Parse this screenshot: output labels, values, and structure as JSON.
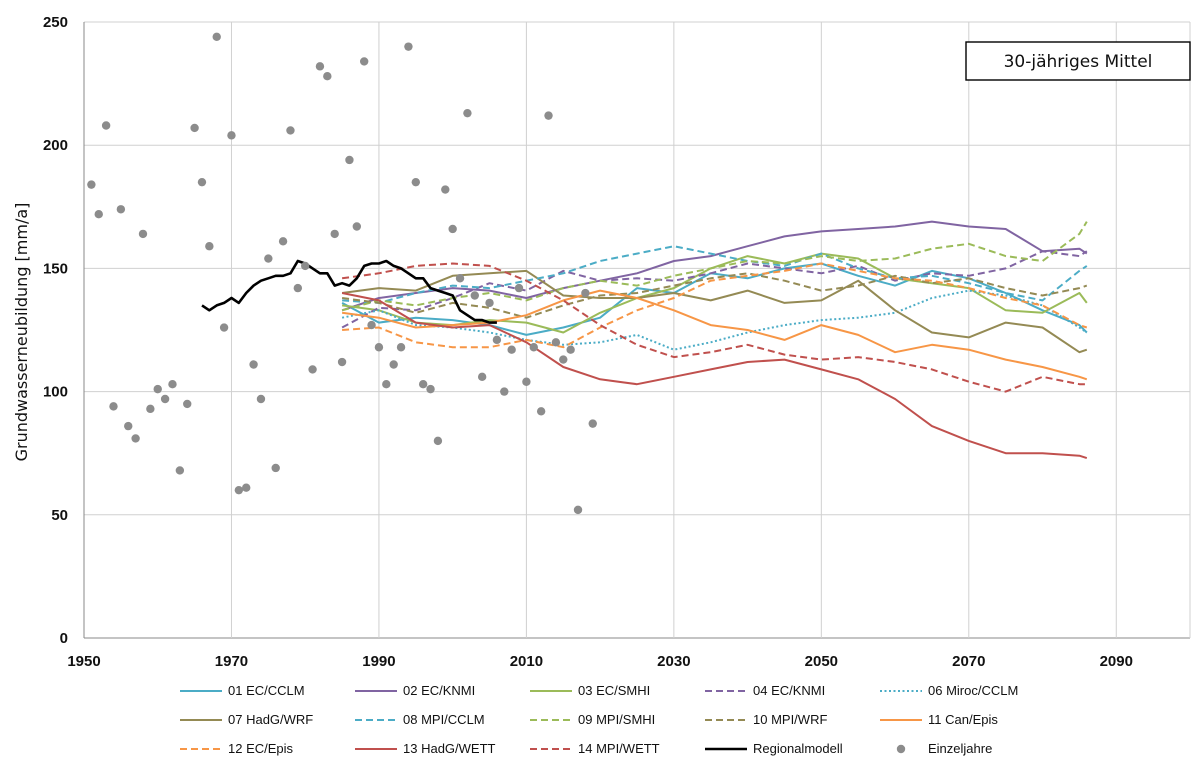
{
  "chart_data": {
    "type": "line",
    "title": "",
    "xlabel": "",
    "ylabel": "Grundwasserneubildung [mm/a]",
    "xlim": [
      1950,
      2100
    ],
    "ylim": [
      0,
      250
    ],
    "x_ticks": [
      1950,
      1970,
      1990,
      2010,
      2030,
      2050,
      2070,
      2090
    ],
    "y_ticks": [
      0,
      50,
      100,
      150,
      200,
      250
    ],
    "grid": true,
    "legend_position": "bottom",
    "annotation": "30-jähriges Mittel",
    "series": [
      {
        "name": "01 EC/CCLM",
        "color": "#4bacc6",
        "dash": "solid",
        "x": [
          1985,
          1990,
          1995,
          2000,
          2005,
          2010,
          2015,
          2020,
          2025,
          2030,
          2035,
          2040,
          2045,
          2050,
          2055,
          2060,
          2065,
          2070,
          2075,
          2080,
          2085,
          2086
        ],
        "y": [
          136,
          128,
          130,
          129,
          127,
          123,
          126,
          130,
          142,
          140,
          148,
          146,
          150,
          152,
          147,
          143,
          149,
          146,
          140,
          133,
          127,
          124
        ]
      },
      {
        "name": "02 EC/KNMI",
        "color": "#8064a2",
        "dash": "solid",
        "x": [
          1985,
          1990,
          1995,
          2000,
          2005,
          2010,
          2015,
          2020,
          2025,
          2030,
          2035,
          2040,
          2045,
          2050,
          2055,
          2060,
          2065,
          2070,
          2075,
          2080,
          2085,
          2086
        ],
        "y": [
          133,
          138,
          140,
          142,
          141,
          138,
          142,
          145,
          148,
          153,
          155,
          159,
          163,
          165,
          166,
          167,
          169,
          167,
          166,
          157,
          158,
          156
        ]
      },
      {
        "name": "03 EC/SMHI",
        "color": "#9bbb59",
        "dash": "solid",
        "x": [
          1985,
          1990,
          1995,
          2000,
          2005,
          2010,
          2015,
          2020,
          2025,
          2030,
          2035,
          2040,
          2045,
          2050,
          2055,
          2060,
          2065,
          2070,
          2075,
          2080,
          2085,
          2086
        ],
        "y": [
          135,
          133,
          128,
          127,
          129,
          128,
          124,
          132,
          138,
          142,
          150,
          155,
          152,
          156,
          154,
          146,
          144,
          142,
          133,
          132,
          140,
          136
        ]
      },
      {
        "name": "04 EC/KNMI",
        "color": "#8064a2",
        "dash": "dashed",
        "x": [
          1985,
          1990,
          1995,
          2000,
          2005,
          2010,
          2015,
          2020,
          2025,
          2030,
          2035,
          2040,
          2045,
          2050,
          2055,
          2060,
          2065,
          2070,
          2075,
          2080,
          2085,
          2086
        ],
        "y": [
          126,
          134,
          133,
          138,
          144,
          141,
          149,
          145,
          146,
          145,
          148,
          152,
          150,
          148,
          151,
          145,
          148,
          147,
          150,
          157,
          155,
          157
        ]
      },
      {
        "name": "06 Miroc/CCLM",
        "color": "#4bacc6",
        "dash": "dotted",
        "x": [
          1985,
          1990,
          1995,
          2000,
          2005,
          2010,
          2015,
          2020,
          2025,
          2030,
          2035,
          2040,
          2045,
          2050,
          2055,
          2060,
          2065,
          2070,
          2075,
          2080,
          2085,
          2086
        ],
        "y": [
          130,
          133,
          127,
          126,
          124,
          121,
          119,
          120,
          123,
          117,
          120,
          124,
          127,
          129,
          130,
          132,
          138,
          141,
          139,
          135,
          126,
          124
        ]
      },
      {
        "name": "07 HadG/WRF",
        "color": "#948a54",
        "dash": "solid",
        "x": [
          1985,
          1990,
          1995,
          2000,
          2005,
          2010,
          2015,
          2020,
          2025,
          2030,
          2035,
          2040,
          2045,
          2050,
          2055,
          2060,
          2065,
          2070,
          2075,
          2080,
          2085,
          2086
        ],
        "y": [
          140,
          142,
          141,
          147,
          148,
          149,
          139,
          138,
          138,
          140,
          137,
          141,
          136,
          137,
          145,
          133,
          124,
          122,
          128,
          126,
          116,
          117
        ]
      },
      {
        "name": "08 MPI/CCLM",
        "color": "#4bacc6",
        "dash": "dashed",
        "x": [
          1985,
          1990,
          1995,
          2000,
          2005,
          2010,
          2015,
          2020,
          2025,
          2030,
          2035,
          2040,
          2045,
          2050,
          2055,
          2060,
          2065,
          2070,
          2075,
          2080,
          2085,
          2086
        ],
        "y": [
          137,
          136,
          140,
          143,
          142,
          145,
          148,
          153,
          156,
          159,
          156,
          153,
          151,
          156,
          150,
          146,
          147,
          144,
          140,
          137,
          149,
          151
        ]
      },
      {
        "name": "09 MPI/SMHI",
        "color": "#9bbb59",
        "dash": "dashed",
        "x": [
          1985,
          1990,
          1995,
          2000,
          2005,
          2010,
          2015,
          2020,
          2025,
          2030,
          2035,
          2040,
          2045,
          2050,
          2055,
          2060,
          2065,
          2070,
          2075,
          2080,
          2085,
          2086
        ],
        "y": [
          133,
          137,
          135,
          138,
          140,
          137,
          142,
          145,
          143,
          147,
          150,
          153,
          152,
          155,
          153,
          154,
          158,
          160,
          155,
          153,
          164,
          169
        ]
      },
      {
        "name": "10 MPI/WRF",
        "color": "#948a54",
        "dash": "dashed",
        "x": [
          1985,
          1990,
          1995,
          2000,
          2005,
          2010,
          2015,
          2020,
          2025,
          2030,
          2035,
          2040,
          2045,
          2050,
          2055,
          2060,
          2065,
          2070,
          2075,
          2080,
          2085,
          2086
        ],
        "y": [
          138,
          136,
          132,
          136,
          134,
          130,
          135,
          139,
          140,
          143,
          146,
          148,
          145,
          141,
          143,
          147,
          144,
          146,
          142,
          139,
          142,
          143
        ]
      },
      {
        "name": "11 Can/Epis",
        "color": "#f79646",
        "dash": "solid",
        "x": [
          1985,
          1990,
          1995,
          2000,
          2005,
          2010,
          2015,
          2020,
          2025,
          2030,
          2035,
          2040,
          2045,
          2050,
          2055,
          2060,
          2065,
          2070,
          2075,
          2080,
          2085,
          2086
        ],
        "y": [
          132,
          130,
          126,
          127,
          128,
          131,
          137,
          141,
          138,
          133,
          127,
          125,
          121,
          127,
          123,
          116,
          119,
          117,
          113,
          110,
          106,
          105
        ]
      },
      {
        "name": "12 EC/Epis",
        "color": "#f79646",
        "dash": "dashed",
        "x": [
          1985,
          1990,
          1995,
          2000,
          2005,
          2010,
          2015,
          2020,
          2025,
          2030,
          2035,
          2040,
          2045,
          2050,
          2055,
          2060,
          2065,
          2070,
          2075,
          2080,
          2085,
          2086
        ],
        "y": [
          125,
          126,
          120,
          118,
          118,
          121,
          118,
          126,
          133,
          138,
          145,
          147,
          149,
          152,
          149,
          146,
          145,
          142,
          138,
          135,
          127,
          126
        ]
      },
      {
        "name": "13 HadG/WETT",
        "color": "#c0504d",
        "dash": "solid",
        "x": [
          1985,
          1990,
          1995,
          2000,
          2005,
          2010,
          2015,
          2020,
          2025,
          2030,
          2035,
          2040,
          2045,
          2050,
          2055,
          2060,
          2065,
          2070,
          2075,
          2080,
          2085,
          2086
        ],
        "y": [
          140,
          137,
          128,
          126,
          127,
          120,
          110,
          105,
          103,
          106,
          109,
          112,
          113,
          109,
          105,
          97,
          86,
          80,
          75,
          75,
          74,
          73
        ]
      },
      {
        "name": "14 MPI/WETT",
        "color": "#c0504d",
        "dash": "dashed",
        "x": [
          1985,
          1990,
          1995,
          2000,
          2005,
          2010,
          2015,
          2020,
          2025,
          2030,
          2035,
          2040,
          2045,
          2050,
          2055,
          2060,
          2065,
          2070,
          2075,
          2080,
          2085,
          2086
        ],
        "y": [
          146,
          148,
          151,
          152,
          151,
          145,
          137,
          127,
          119,
          114,
          116,
          119,
          115,
          113,
          114,
          112,
          109,
          104,
          100,
          106,
          103,
          103
        ]
      },
      {
        "name": "Regionalmodell",
        "color": "#000000",
        "dash": "solid",
        "width": 2.6,
        "x": [
          1966,
          1967,
          1968,
          1969,
          1970,
          1971,
          1972,
          1973,
          1974,
          1975,
          1976,
          1977,
          1978,
          1979,
          1980,
          1981,
          1982,
          1983,
          1984,
          1985,
          1986,
          1987,
          1988,
          1989,
          1990,
          1991,
          1992,
          1993,
          1994,
          1995,
          1996,
          1997,
          1998,
          1999,
          2000,
          2001,
          2002,
          2003,
          2004,
          2005,
          2006
        ],
        "y": [
          135,
          133,
          135,
          136,
          138,
          136,
          140,
          143,
          145,
          146,
          147,
          147,
          148,
          153,
          152,
          150,
          148,
          148,
          143,
          144,
          143,
          146,
          151,
          152,
          152,
          153,
          151,
          150,
          148,
          146,
          146,
          142,
          141,
          140,
          139,
          133,
          131,
          129,
          129,
          128,
          128
        ]
      }
    ],
    "scatter": {
      "name": "Einzeljahre",
      "color": "#8c8c8c",
      "x": [
        1951,
        1952,
        1953,
        1954,
        1955,
        1956,
        1957,
        1958,
        1959,
        1960,
        1961,
        1962,
        1963,
        1964,
        1965,
        1966,
        1967,
        1968,
        1969,
        1970,
        1971,
        1972,
        1973,
        1974,
        1975,
        1976,
        1977,
        1978,
        1979,
        1980,
        1981,
        1982,
        1983,
        1984,
        1985,
        1986,
        1987,
        1988,
        1989,
        1990,
        1991,
        1992,
        1993,
        1994,
        1995,
        1996,
        1997,
        1998,
        1999,
        2000,
        2001,
        2002,
        2003,
        2004,
        2005,
        2006,
        2007,
        2008,
        2009,
        2010,
        2011,
        2012,
        2013,
        2014,
        2015,
        2016,
        2017,
        2018,
        2019
      ],
      "y": [
        184,
        172,
        208,
        94,
        174,
        86,
        81,
        164,
        93,
        101,
        97,
        103,
        68,
        95,
        207,
        185,
        159,
        244,
        126,
        204,
        60,
        61,
        111,
        97,
        154,
        69,
        161,
        206,
        142,
        151,
        109,
        232,
        228,
        164,
        112,
        194,
        167,
        234,
        127,
        118,
        103,
        111,
        118,
        240,
        185,
        103,
        101,
        80,
        182,
        166,
        146,
        213,
        139,
        106,
        136,
        121,
        100,
        117,
        142,
        104,
        118,
        92,
        212,
        120,
        113,
        117,
        52,
        140,
        87
      ]
    }
  }
}
